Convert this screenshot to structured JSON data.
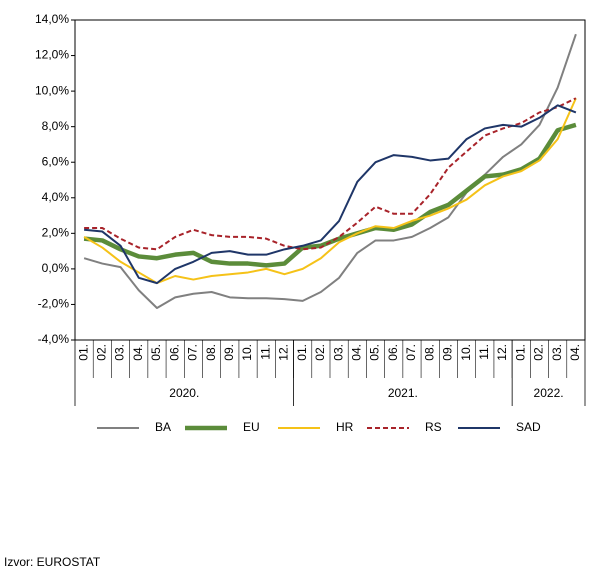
{
  "chart_data": {
    "type": "line",
    "categories": [
      "01.",
      "02.",
      "03.",
      "04.",
      "05.",
      "06.",
      "07.",
      "08.",
      "09.",
      "10.",
      "11.",
      "12.",
      "01.",
      "02.",
      "03.",
      "04.",
      "05.",
      "06.",
      "07.",
      "08.",
      "09.",
      "10.",
      "11.",
      "12.",
      "01.",
      "02.",
      "03.",
      "04."
    ],
    "groups": [
      "2020.",
      "2021.",
      "2022."
    ],
    "series": [
      {
        "name": "BA",
        "color": "#808080",
        "values": [
          0.6,
          0.3,
          0.1,
          -1.2,
          -2.2,
          -1.6,
          -1.4,
          -1.3,
          -1.6,
          -1.65,
          -1.65,
          -1.7,
          -1.8,
          -1.3,
          -0.5,
          0.9,
          1.6,
          1.6,
          1.8,
          2.3,
          2.9,
          4.3,
          5.3,
          6.3,
          7.0,
          8.1,
          10.2,
          13.2
        ]
      },
      {
        "name": "EU",
        "color": "#5b8c3a",
        "values": [
          1.7,
          1.6,
          1.1,
          0.7,
          0.6,
          0.8,
          0.9,
          0.4,
          0.3,
          0.3,
          0.2,
          0.3,
          1.2,
          1.3,
          1.7,
          2.0,
          2.3,
          2.2,
          2.5,
          3.2,
          3.6,
          4.4,
          5.2,
          5.3,
          5.6,
          6.2,
          7.8,
          8.1
        ]
      },
      {
        "name": "HR",
        "color": "#f5c218",
        "values": [
          1.8,
          1.2,
          0.4,
          -0.2,
          -0.8,
          -0.4,
          -0.6,
          -0.4,
          -0.3,
          -0.2,
          0.0,
          -0.3,
          0.0,
          0.6,
          1.5,
          2.0,
          2.4,
          2.3,
          2.7,
          3.0,
          3.4,
          3.9,
          4.7,
          5.2,
          5.5,
          6.1,
          7.3,
          9.6
        ]
      },
      {
        "name": "RS",
        "color": "#a8232a",
        "dashed": true,
        "values": [
          2.3,
          2.3,
          1.7,
          1.2,
          1.1,
          1.8,
          2.2,
          1.9,
          1.8,
          1.8,
          1.7,
          1.3,
          1.1,
          1.2,
          1.8,
          2.6,
          3.5,
          3.1,
          3.1,
          4.2,
          5.7,
          6.6,
          7.5,
          7.9,
          8.2,
          8.8,
          9.1,
          9.6
        ]
      },
      {
        "name": "SAD",
        "color": "#1f3668",
        "values": [
          2.2,
          2.1,
          1.3,
          -0.5,
          -0.8,
          0.0,
          0.4,
          0.9,
          1.0,
          0.8,
          0.8,
          1.1,
          1.3,
          1.6,
          2.7,
          4.9,
          6.0,
          6.4,
          6.3,
          6.1,
          6.2,
          7.3,
          7.9,
          8.1,
          8.0,
          8.5,
          9.2,
          8.8
        ]
      }
    ],
    "ylim": [
      -4,
      14
    ],
    "yticks": [
      {
        "value": -4,
        "label": "-4,0%"
      },
      {
        "value": -2,
        "label": "-2,0%"
      },
      {
        "value": 0,
        "label": "0,0%"
      },
      {
        "value": 2,
        "label": "2,0%"
      },
      {
        "value": 4,
        "label": "4,0%"
      },
      {
        "value": 6,
        "label": "6,0%"
      },
      {
        "value": 8,
        "label": "8,0%"
      },
      {
        "value": 10,
        "label": "10,0%"
      },
      {
        "value": 12,
        "label": "12,0%"
      },
      {
        "value": 14,
        "label": "14,0%"
      }
    ],
    "grid": false,
    "legend": "bottom"
  },
  "source": "Izvor: EUROSTAT"
}
